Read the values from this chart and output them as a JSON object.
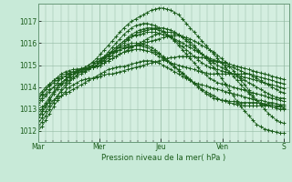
{
  "xlabel": "Pression niveau de la mer( hPa )",
  "bg_color": "#c8ead8",
  "plot_bg_color": "#d4eee0",
  "line_color": "#1a5c1a",
  "ylim": [
    1011.5,
    1017.8
  ],
  "yticks": [
    1012,
    1013,
    1014,
    1015,
    1016,
    1017
  ],
  "day_labels": [
    "Mar",
    "Mer",
    "Jeu",
    "Ven",
    "S"
  ],
  "day_positions": [
    0,
    48,
    96,
    144,
    192
  ],
  "xlim": [
    0,
    196
  ],
  "series": [
    [
      1012.0,
      1012.2,
      1012.5,
      1012.8,
      1013.1,
      1013.4,
      1013.6,
      1013.8,
      1014.0,
      1014.1,
      1014.2,
      1014.3,
      1014.35,
      1014.4,
      1014.4,
      1014.45,
      1014.5,
      1014.55,
      1014.6,
      1014.6,
      1014.65,
      1014.7,
      1014.75,
      1014.8,
      1014.85,
      1014.9,
      1014.95,
      1015.0,
      1015.05,
      1015.1,
      1015.15,
      1015.2,
      1015.25,
      1015.3,
      1015.35,
      1015.35,
      1015.4,
      1015.4,
      1015.4,
      1015.4,
      1015.4,
      1015.35,
      1015.35,
      1015.3,
      1015.25,
      1015.2,
      1015.15,
      1015.1,
      1015.0,
      1014.95,
      1014.9,
      1014.8,
      1014.75,
      1014.65,
      1014.6,
      1014.5,
      1014.4,
      1014.3,
      1014.2,
      1014.1,
      1014.0,
      1013.9,
      1013.8,
      1013.75
    ],
    [
      1012.2,
      1012.4,
      1012.7,
      1013.0,
      1013.3,
      1013.6,
      1013.9,
      1014.1,
      1014.3,
      1014.5,
      1014.7,
      1014.8,
      1014.9,
      1015.0,
      1015.1,
      1015.2,
      1015.3,
      1015.4,
      1015.5,
      1015.6,
      1015.65,
      1015.7,
      1015.75,
      1015.8,
      1015.85,
      1015.9,
      1015.95,
      1016.0,
      1016.05,
      1016.1,
      1016.15,
      1016.2,
      1016.25,
      1016.3,
      1016.35,
      1016.35,
      1016.35,
      1016.3,
      1016.25,
      1016.2,
      1016.1,
      1016.0,
      1015.9,
      1015.8,
      1015.7,
      1015.6,
      1015.45,
      1015.3,
      1015.15,
      1014.95,
      1014.75,
      1014.55,
      1014.3,
      1014.1,
      1013.85,
      1013.6,
      1013.4,
      1013.2,
      1013.0,
      1012.8,
      1012.65,
      1012.5,
      1012.4,
      1012.35
    ],
    [
      1012.5,
      1012.8,
      1013.1,
      1013.4,
      1013.7,
      1014.0,
      1014.2,
      1014.35,
      1014.5,
      1014.6,
      1014.7,
      1014.75,
      1014.8,
      1014.85,
      1014.9,
      1014.95,
      1015.0,
      1015.1,
      1015.2,
      1015.3,
      1015.4,
      1015.5,
      1015.6,
      1015.7,
      1015.8,
      1015.9,
      1016.0,
      1016.1,
      1016.2,
      1016.3,
      1016.4,
      1016.45,
      1016.5,
      1016.5,
      1016.5,
      1016.45,
      1016.4,
      1016.3,
      1016.2,
      1016.05,
      1015.9,
      1015.7,
      1015.5,
      1015.3,
      1015.1,
      1014.9,
      1014.65,
      1014.4,
      1014.15,
      1013.85,
      1013.6,
      1013.35,
      1013.1,
      1012.9,
      1012.7,
      1012.5,
      1012.3,
      1012.2,
      1012.1,
      1012.05,
      1012.0,
      1011.95,
      1011.9,
      1011.9
    ],
    [
      1013.3,
      1013.5,
      1013.7,
      1013.9,
      1014.0,
      1014.1,
      1014.15,
      1014.2,
      1014.3,
      1014.4,
      1014.5,
      1014.6,
      1014.7,
      1014.8,
      1014.9,
      1015.0,
      1015.15,
      1015.3,
      1015.45,
      1015.6,
      1015.7,
      1015.8,
      1015.88,
      1015.95,
      1016.0,
      1016.0,
      1016.0,
      1015.95,
      1015.9,
      1015.8,
      1015.7,
      1015.55,
      1015.4,
      1015.25,
      1015.1,
      1014.95,
      1014.8,
      1014.65,
      1014.5,
      1014.35,
      1014.2,
      1014.05,
      1013.9,
      1013.8,
      1013.7,
      1013.6,
      1013.5,
      1013.4,
      1013.35,
      1013.3,
      1013.25,
      1013.2,
      1013.2,
      1013.15,
      1013.15,
      1013.15,
      1013.15,
      1013.15,
      1013.15,
      1013.15,
      1013.1,
      1013.1,
      1013.1,
      1013.05
    ],
    [
      1013.0,
      1013.1,
      1013.2,
      1013.3,
      1013.4,
      1013.5,
      1013.6,
      1013.7,
      1013.8,
      1013.9,
      1014.0,
      1014.1,
      1014.2,
      1014.3,
      1014.4,
      1014.5,
      1014.6,
      1014.7,
      1014.8,
      1014.85,
      1014.9,
      1014.93,
      1014.95,
      1015.0,
      1015.05,
      1015.1,
      1015.15,
      1015.2,
      1015.2,
      1015.2,
      1015.15,
      1015.1,
      1015.0,
      1014.9,
      1014.8,
      1014.7,
      1014.6,
      1014.5,
      1014.4,
      1014.3,
      1014.2,
      1014.15,
      1014.1,
      1014.05,
      1014.0,
      1013.95,
      1013.9,
      1013.85,
      1013.8,
      1013.75,
      1013.7,
      1013.65,
      1013.6,
      1013.55,
      1013.5,
      1013.45,
      1013.4,
      1013.4,
      1013.35,
      1013.3,
      1013.3,
      1013.25,
      1013.2,
      1013.2
    ],
    [
      1013.5,
      1013.7,
      1013.9,
      1014.05,
      1014.2,
      1014.3,
      1014.4,
      1014.5,
      1014.55,
      1014.6,
      1014.65,
      1014.7,
      1014.75,
      1014.8,
      1014.9,
      1015.0,
      1015.1,
      1015.25,
      1015.4,
      1015.55,
      1015.7,
      1015.85,
      1016.0,
      1016.15,
      1016.3,
      1016.4,
      1016.5,
      1016.55,
      1016.6,
      1016.65,
      1016.7,
      1016.7,
      1016.7,
      1016.65,
      1016.6,
      1016.5,
      1016.4,
      1016.25,
      1016.1,
      1015.95,
      1015.8,
      1015.65,
      1015.5,
      1015.35,
      1015.2,
      1015.1,
      1015.0,
      1014.9,
      1014.8,
      1014.7,
      1014.6,
      1014.5,
      1014.4,
      1014.3,
      1014.2,
      1014.1,
      1014.0,
      1013.9,
      1013.8,
      1013.7,
      1013.6,
      1013.55,
      1013.5,
      1013.5
    ],
    [
      1012.8,
      1013.0,
      1013.3,
      1013.55,
      1013.8,
      1014.0,
      1014.2,
      1014.35,
      1014.5,
      1014.6,
      1014.7,
      1014.8,
      1014.9,
      1015.0,
      1015.15,
      1015.3,
      1015.5,
      1015.7,
      1015.9,
      1016.1,
      1016.3,
      1016.5,
      1016.7,
      1016.85,
      1017.0,
      1017.1,
      1017.2,
      1017.3,
      1017.4,
      1017.5,
      1017.55,
      1017.6,
      1017.6,
      1017.55,
      1017.5,
      1017.4,
      1017.3,
      1017.1,
      1016.9,
      1016.7,
      1016.5,
      1016.3,
      1016.1,
      1015.9,
      1015.7,
      1015.5,
      1015.3,
      1015.1,
      1014.9,
      1014.7,
      1014.5,
      1014.3,
      1014.1,
      1013.9,
      1013.7,
      1013.55,
      1013.4,
      1013.3,
      1013.2,
      1013.15,
      1013.1,
      1013.05,
      1013.0,
      1013.0
    ],
    [
      1013.2,
      1013.4,
      1013.6,
      1013.8,
      1014.0,
      1014.2,
      1014.4,
      1014.5,
      1014.6,
      1014.7,
      1014.75,
      1014.8,
      1014.85,
      1014.9,
      1015.0,
      1015.1,
      1015.2,
      1015.35,
      1015.5,
      1015.65,
      1015.8,
      1015.95,
      1016.1,
      1016.2,
      1016.3,
      1016.35,
      1016.4,
      1016.45,
      1016.5,
      1016.5,
      1016.5,
      1016.45,
      1016.4,
      1016.35,
      1016.3,
      1016.2,
      1016.1,
      1016.0,
      1015.9,
      1015.8,
      1015.7,
      1015.6,
      1015.5,
      1015.4,
      1015.3,
      1015.25,
      1015.2,
      1015.15,
      1015.1,
      1015.05,
      1015.0,
      1014.95,
      1014.9,
      1014.85,
      1014.8,
      1014.75,
      1014.7,
      1014.65,
      1014.6,
      1014.55,
      1014.5,
      1014.45,
      1014.4,
      1014.35
    ],
    [
      1012.3,
      1012.6,
      1012.9,
      1013.15,
      1013.4,
      1013.6,
      1013.8,
      1014.0,
      1014.2,
      1014.4,
      1014.55,
      1014.7,
      1014.8,
      1014.9,
      1015.0,
      1015.1,
      1015.2,
      1015.35,
      1015.5,
      1015.65,
      1015.8,
      1015.95,
      1016.1,
      1016.25,
      1016.4,
      1016.5,
      1016.6,
      1016.65,
      1016.7,
      1016.7,
      1016.65,
      1016.6,
      1016.5,
      1016.4,
      1016.3,
      1016.15,
      1016.0,
      1015.85,
      1015.7,
      1015.55,
      1015.4,
      1015.25,
      1015.1,
      1015.0,
      1014.9,
      1014.85,
      1014.8,
      1014.75,
      1014.7,
      1014.65,
      1014.6,
      1014.55,
      1014.5,
      1014.45,
      1014.4,
      1014.35,
      1014.3,
      1014.25,
      1014.2,
      1014.15,
      1014.1,
      1014.05,
      1014.0,
      1013.95
    ],
    [
      1013.6,
      1013.8,
      1014.0,
      1014.15,
      1014.3,
      1014.4,
      1014.5,
      1014.6,
      1014.65,
      1014.7,
      1014.75,
      1014.8,
      1014.82,
      1014.85,
      1014.9,
      1014.95,
      1015.0,
      1015.1,
      1015.2,
      1015.3,
      1015.4,
      1015.5,
      1015.6,
      1015.65,
      1015.7,
      1015.72,
      1015.72,
      1015.7,
      1015.65,
      1015.6,
      1015.5,
      1015.4,
      1015.3,
      1015.2,
      1015.1,
      1015.05,
      1015.0,
      1014.95,
      1014.9,
      1014.85,
      1014.8,
      1014.75,
      1014.7,
      1014.65,
      1014.6,
      1014.6,
      1014.6,
      1014.6,
      1014.6,
      1014.6,
      1014.6,
      1014.6,
      1014.6,
      1014.6,
      1014.6,
      1014.55,
      1014.5,
      1014.45,
      1014.4,
      1014.35,
      1014.3,
      1014.25,
      1014.2,
      1014.15
    ],
    [
      1013.4,
      1013.65,
      1013.9,
      1014.1,
      1014.3,
      1014.45,
      1014.6,
      1014.7,
      1014.75,
      1014.8,
      1014.82,
      1014.85,
      1014.88,
      1014.9,
      1014.95,
      1015.0,
      1015.1,
      1015.2,
      1015.3,
      1015.45,
      1015.6,
      1015.7,
      1015.8,
      1015.85,
      1015.88,
      1015.9,
      1015.88,
      1015.85,
      1015.8,
      1015.7,
      1015.6,
      1015.5,
      1015.35,
      1015.2,
      1015.05,
      1014.9,
      1014.75,
      1014.6,
      1014.45,
      1014.3,
      1014.15,
      1014.0,
      1013.85,
      1013.7,
      1013.6,
      1013.5,
      1013.45,
      1013.4,
      1013.4,
      1013.35,
      1013.35,
      1013.3,
      1013.3,
      1013.3,
      1013.3,
      1013.3,
      1013.3,
      1013.25,
      1013.25,
      1013.2,
      1013.2,
      1013.15,
      1013.15,
      1013.1
    ],
    [
      1012.6,
      1012.9,
      1013.2,
      1013.45,
      1013.7,
      1013.9,
      1014.1,
      1014.3,
      1014.45,
      1014.6,
      1014.7,
      1014.8,
      1014.85,
      1014.9,
      1015.0,
      1015.1,
      1015.25,
      1015.4,
      1015.6,
      1015.8,
      1016.0,
      1016.2,
      1016.4,
      1016.55,
      1016.7,
      1016.8,
      1016.85,
      1016.9,
      1016.9,
      1016.85,
      1016.8,
      1016.7,
      1016.55,
      1016.4,
      1016.25,
      1016.1,
      1015.9,
      1015.7,
      1015.5,
      1015.3,
      1015.1,
      1014.9,
      1014.7,
      1014.55,
      1014.4,
      1014.3,
      1014.2,
      1014.15,
      1014.1,
      1014.05,
      1014.0,
      1013.95,
      1013.9,
      1013.85,
      1013.8,
      1013.75,
      1013.7,
      1013.65,
      1013.6,
      1013.55,
      1013.5,
      1013.45,
      1013.4,
      1013.35
    ]
  ]
}
